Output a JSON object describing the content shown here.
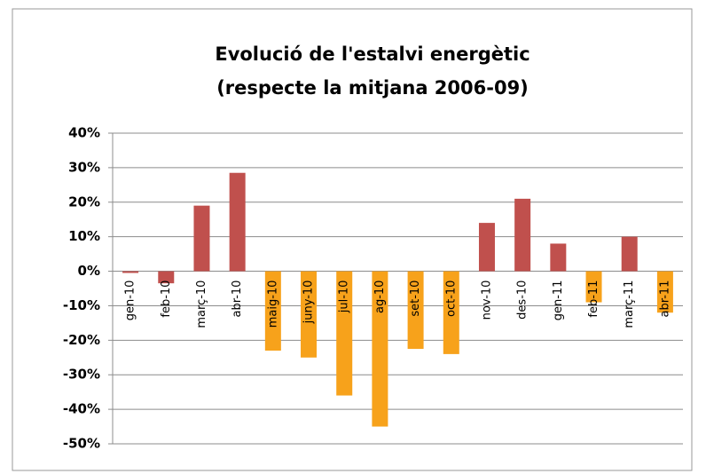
{
  "chart_data": {
    "type": "bar",
    "title": "Evolució de l'estalvi energètic",
    "subtitle": "(respecte la mitjana 2006-09)",
    "categories": [
      "gen-10",
      "feb-10",
      "març-10",
      "abr-10",
      "maig-10",
      "juny-10",
      "jul-10",
      "ag-10",
      "set-10",
      "oct-10",
      "nov-10",
      "des-10",
      "gen-11",
      "feb-11",
      "març-11",
      "abr-11"
    ],
    "values": [
      -0.5,
      -3.5,
      19,
      28.5,
      -23,
      -25,
      -36,
      -45,
      -22.5,
      -24,
      14,
      21,
      8,
      -9,
      10,
      -12
    ],
    "colors": [
      "#c0504d",
      "#c0504d",
      "#c0504d",
      "#c0504d",
      "#f7a21b",
      "#f7a21b",
      "#f7a21b",
      "#f7a21b",
      "#f7a21b",
      "#f7a21b",
      "#c0504d",
      "#c0504d",
      "#c0504d",
      "#f7a21b",
      "#c0504d",
      "#f7a21b"
    ],
    "ylim": [
      -50,
      40
    ],
    "yticks": [
      {
        "value": -50,
        "label": "-50%"
      },
      {
        "value": -40,
        "label": "-40%"
      },
      {
        "value": -30,
        "label": "-30%"
      },
      {
        "value": -20,
        "label": "-20%"
      },
      {
        "value": -10,
        "label": "-10%"
      },
      {
        "value": 0,
        "label": "0%"
      },
      {
        "value": 10,
        "label": "10%"
      },
      {
        "value": 20,
        "label": "20%"
      },
      {
        "value": 30,
        "label": "30%"
      },
      {
        "value": 40,
        "label": "40%"
      }
    ],
    "grid": true
  }
}
